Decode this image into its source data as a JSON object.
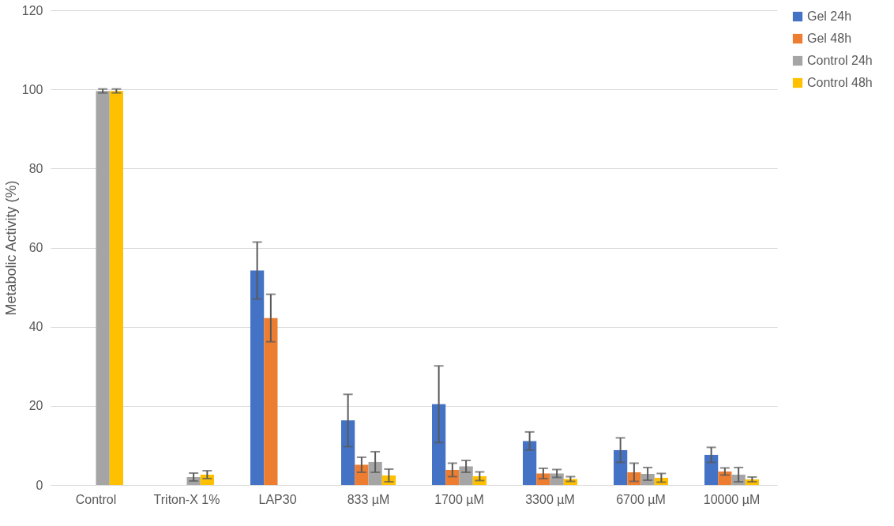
{
  "chart_data": {
    "type": "bar",
    "ylabel": "Metabolic Activity (%)",
    "categories": [
      "Control",
      "Triton-X 1%",
      "LAP30",
      "833 µM",
      "1700 µM",
      "3300 µM",
      "6700 µM",
      "10000 µM"
    ],
    "series": [
      {
        "name": "Gel 24h",
        "color": "#4472c4",
        "values": [
          null,
          null,
          54.2,
          16.3,
          20.4,
          11.1,
          8.8,
          7.6
        ],
        "errors": [
          null,
          null,
          7.2,
          6.6,
          9.7,
          2.3,
          3.1,
          1.9
        ]
      },
      {
        "name": "Gel 48h",
        "color": "#ed7d31",
        "values": [
          null,
          null,
          42.2,
          5.1,
          3.8,
          2.9,
          3.2,
          3.4
        ],
        "errors": [
          null,
          null,
          6.0,
          1.9,
          1.7,
          1.3,
          2.3,
          0.9
        ]
      },
      {
        "name": "Control 24h",
        "color": "#a5a5a5",
        "values": [
          99.6,
          2.0,
          null,
          5.8,
          4.7,
          2.9,
          2.8,
          2.6
        ],
        "errors": [
          0.5,
          1.0,
          null,
          2.6,
          1.5,
          1.0,
          1.6,
          1.8
        ]
      },
      {
        "name": "Control 48h",
        "color": "#ffc000",
        "values": [
          99.6,
          2.6,
          null,
          2.4,
          2.2,
          1.5,
          1.8,
          1.4
        ],
        "errors": [
          0.5,
          1.0,
          null,
          1.6,
          1.1,
          0.6,
          1.1,
          0.6
        ]
      }
    ],
    "ylim": [
      0,
      120
    ],
    "yticks": [
      0,
      20,
      40,
      60,
      80,
      100,
      120
    ],
    "grid": "y",
    "legend": "right"
  }
}
